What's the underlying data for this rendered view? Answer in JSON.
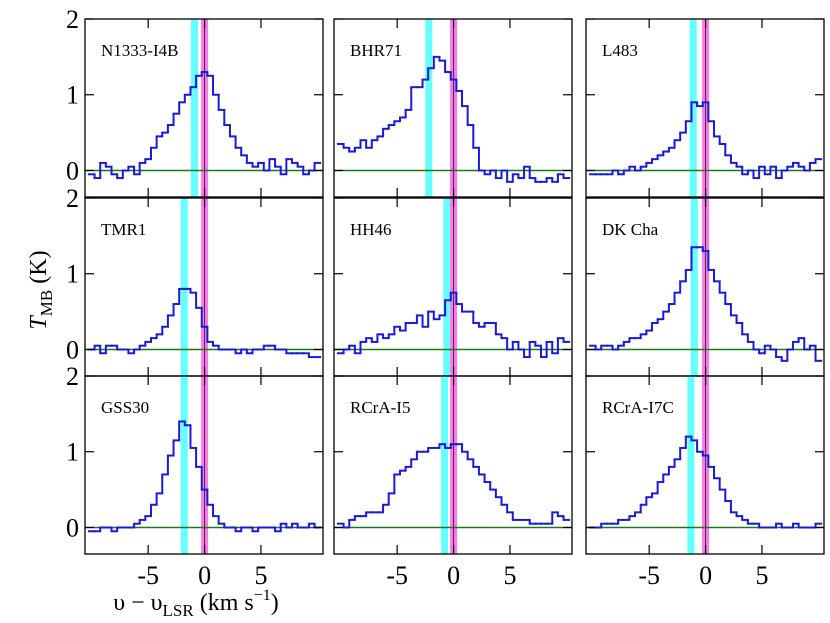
{
  "ylabel": {
    "main": "T",
    "sub": "MB",
    "rest": " (K)"
  },
  "xlabel": {
    "main": "υ − υ",
    "sub": "LSR",
    "rest": " (km s",
    "sup": "−1",
    "end": ")"
  },
  "chart_data": [
    {
      "type": "step",
      "title": "N1333-I4B",
      "color": "#1a1adb",
      "xlim": [
        -10.6,
        10.5
      ],
      "ylim": [
        -0.35,
        2
      ],
      "xticks": [
        -5,
        0,
        5
      ],
      "yticks": [
        0,
        1,
        2
      ],
      "hline": 0,
      "hline_color": "#1a7a1a",
      "bands": [
        {
          "center": -0.9,
          "color": "#66ffff",
          "center_line": false
        },
        {
          "center": 0,
          "color": "#ff77ee",
          "center_line": true
        }
      ],
      "x": [
        -10,
        -9.5,
        -9,
        -8.5,
        -8,
        -7.5,
        -7,
        -6.5,
        -6,
        -5.5,
        -5,
        -4.5,
        -4,
        -3.5,
        -3,
        -2.5,
        -2,
        -1.5,
        -1,
        -0.5,
        0,
        0.5,
        1,
        1.5,
        2,
        2.5,
        3,
        3.5,
        4,
        4.5,
        5,
        5.5,
        6,
        6.5,
        7,
        7.5,
        8,
        8.5,
        9,
        9.5,
        10
      ],
      "values": [
        -0.05,
        -0.1,
        0.1,
        0.05,
        -0.05,
        -0.1,
        0.0,
        0.05,
        -0.05,
        0.1,
        0.15,
        0.3,
        0.45,
        0.5,
        0.6,
        0.75,
        0.9,
        1.0,
        1.1,
        1.25,
        1.3,
        1.25,
        1.0,
        0.8,
        0.6,
        0.45,
        0.3,
        0.2,
        0.1,
        0.05,
        0.1,
        0.0,
        0.15,
        0.05,
        -0.05,
        0.15,
        0.1,
        0.05,
        -0.05,
        0.0,
        0.1
      ]
    },
    {
      "type": "step",
      "title": "BHR71",
      "color": "#1a1adb",
      "xlim": [
        -10.6,
        10.5
      ],
      "ylim": [
        -0.35,
        2
      ],
      "xticks": [
        -5,
        0,
        5
      ],
      "yticks": [
        0,
        1,
        2
      ],
      "hline": 0,
      "hline_color": "#1a7a1a",
      "bands": [
        {
          "center": -2.2,
          "color": "#66ffff",
          "center_line": false
        },
        {
          "center": 0,
          "color": "#ff77ee",
          "center_line": true
        }
      ],
      "x": [
        -10,
        -9.5,
        -9,
        -8.5,
        -8,
        -7.5,
        -7,
        -6.5,
        -6,
        -5.5,
        -5,
        -4.5,
        -4,
        -3.5,
        -3,
        -2.5,
        -2,
        -1.5,
        -1,
        -0.5,
        0,
        0.5,
        1,
        1.5,
        2,
        2.5,
        3,
        3.5,
        4,
        4.5,
        5,
        5.5,
        6,
        6.5,
        7,
        7.5,
        8,
        8.5,
        9,
        9.5,
        10
      ],
      "values": [
        0.35,
        0.3,
        0.25,
        0.3,
        0.4,
        0.3,
        0.4,
        0.45,
        0.55,
        0.6,
        0.65,
        0.7,
        0.8,
        1.1,
        1.1,
        1.2,
        1.35,
        1.5,
        1.45,
        1.3,
        1.2,
        1.05,
        0.85,
        0.6,
        0.3,
        0.0,
        -0.05,
        0.0,
        -0.1,
        0.0,
        -0.15,
        -0.05,
        -0.1,
        0.05,
        -0.1,
        -0.15,
        -0.15,
        -0.1,
        -0.15,
        -0.05,
        -0.1
      ]
    },
    {
      "type": "step",
      "title": "L483",
      "color": "#1a1adb",
      "xlim": [
        -10.6,
        10.5
      ],
      "ylim": [
        -0.35,
        2
      ],
      "xticks": [
        -5,
        0,
        5
      ],
      "yticks": [
        0,
        1,
        2
      ],
      "hline": 0,
      "hline_color": "#1a7a1a",
      "bands": [
        {
          "center": -1.1,
          "color": "#66ffff",
          "center_line": false
        },
        {
          "center": 0,
          "color": "#ff77ee",
          "center_line": true
        }
      ],
      "x": [
        -10,
        -9.5,
        -9,
        -8.5,
        -8,
        -7.5,
        -7,
        -6.5,
        -6,
        -5.5,
        -5,
        -4.5,
        -4,
        -3.5,
        -3,
        -2.5,
        -2,
        -1.5,
        -1,
        -0.5,
        0,
        0.5,
        1,
        1.5,
        2,
        2.5,
        3,
        3.5,
        4,
        4.5,
        5,
        5.5,
        6,
        6.5,
        7,
        7.5,
        8,
        8.5,
        9,
        9.5,
        10
      ],
      "values": [
        -0.05,
        -0.05,
        -0.05,
        -0.05,
        0.0,
        -0.05,
        0.0,
        0.05,
        0.0,
        0.05,
        0.1,
        0.15,
        0.2,
        0.25,
        0.3,
        0.4,
        0.5,
        0.65,
        0.9,
        0.85,
        0.9,
        0.65,
        0.45,
        0.35,
        0.2,
        0.1,
        0.05,
        -0.05,
        0.0,
        -0.1,
        0.05,
        -0.05,
        0.05,
        -0.1,
        0.0,
        0.05,
        0.1,
        0.05,
        0.0,
        0.1,
        0.15
      ]
    },
    {
      "type": "step",
      "title": "TMR1",
      "color": "#1a1adb",
      "xlim": [
        -10.6,
        10.5
      ],
      "ylim": [
        -0.35,
        2
      ],
      "xticks": [
        -5,
        0,
        5
      ],
      "yticks": [
        0,
        1,
        2
      ],
      "hline": 0,
      "hline_color": "#1a7a1a",
      "bands": [
        {
          "center": -1.8,
          "color": "#66ffff",
          "center_line": false
        },
        {
          "center": 0,
          "color": "#ff77ee",
          "center_line": true
        }
      ],
      "x": [
        -10,
        -9.5,
        -9,
        -8.5,
        -8,
        -7.5,
        -7,
        -6.5,
        -6,
        -5.5,
        -5,
        -4.5,
        -4,
        -3.5,
        -3,
        -2.5,
        -2,
        -1.5,
        -1,
        -0.5,
        0,
        0.5,
        1,
        1.5,
        2,
        2.5,
        3,
        3.5,
        4,
        4.5,
        5,
        5.5,
        6,
        6.5,
        7,
        7.5,
        8,
        8.5,
        9,
        9.5,
        10
      ],
      "values": [
        0.0,
        0.05,
        -0.05,
        0.05,
        0.05,
        0.0,
        0.0,
        -0.05,
        0.0,
        0.05,
        0.1,
        0.15,
        0.2,
        0.3,
        0.45,
        0.6,
        0.8,
        0.8,
        0.75,
        0.55,
        0.3,
        0.1,
        0.05,
        0.0,
        0.0,
        0.0,
        -0.05,
        0.0,
        -0.05,
        0.0,
        0.0,
        0.05,
        0.05,
        0.0,
        0.0,
        -0.05,
        -0.05,
        -0.05,
        -0.05,
        -0.1,
        -0.1
      ]
    },
    {
      "type": "step",
      "title": "HH46",
      "color": "#1a1adb",
      "xlim": [
        -10.6,
        10.5
      ],
      "ylim": [
        -0.35,
        2
      ],
      "xticks": [
        -5,
        0,
        5
      ],
      "yticks": [
        0,
        1,
        2
      ],
      "hline": 0,
      "hline_color": "#1a7a1a",
      "bands": [
        {
          "center": -0.6,
          "color": "#66ffff",
          "center_line": false
        },
        {
          "center": 0,
          "color": "#ff77ee",
          "center_line": true
        }
      ],
      "x": [
        -10,
        -9.5,
        -9,
        -8.5,
        -8,
        -7.5,
        -7,
        -6.5,
        -6,
        -5.5,
        -5,
        -4.5,
        -4,
        -3.5,
        -3,
        -2.5,
        -2,
        -1.5,
        -1,
        -0.5,
        0,
        0.5,
        1,
        1.5,
        2,
        2.5,
        3,
        3.5,
        4,
        4.5,
        5,
        5.5,
        6,
        6.5,
        7,
        7.5,
        8,
        8.5,
        9,
        9.5,
        10
      ],
      "values": [
        -0.05,
        0.0,
        0.05,
        -0.05,
        0.1,
        0.15,
        0.1,
        0.2,
        0.15,
        0.2,
        0.3,
        0.25,
        0.35,
        0.35,
        0.45,
        0.3,
        0.5,
        0.4,
        0.45,
        0.65,
        0.75,
        0.6,
        0.5,
        0.5,
        0.35,
        0.3,
        0.35,
        0.35,
        0.2,
        0.15,
        0.0,
        0.1,
        0.0,
        -0.1,
        0.1,
        0.05,
        -0.1,
        0.1,
        -0.05,
        0.15,
        0.1
      ]
    },
    {
      "type": "step",
      "title": "DK Cha",
      "color": "#1a1adb",
      "xlim": [
        -10.6,
        10.5
      ],
      "ylim": [
        -0.35,
        2
      ],
      "xticks": [
        -5,
        0,
        5
      ],
      "yticks": [
        0,
        1,
        2
      ],
      "hline": 0,
      "hline_color": "#1a7a1a",
      "bands": [
        {
          "center": -1.0,
          "color": "#66ffff",
          "center_line": false
        },
        {
          "center": 0,
          "color": "#ff77ee",
          "center_line": true
        }
      ],
      "x": [
        -10,
        -9.5,
        -9,
        -8.5,
        -8,
        -7.5,
        -7,
        -6.5,
        -6,
        -5.5,
        -5,
        -4.5,
        -4,
        -3.5,
        -3,
        -2.5,
        -2,
        -1.5,
        -1,
        -0.5,
        0,
        0.5,
        1,
        1.5,
        2,
        2.5,
        3,
        3.5,
        4,
        4.5,
        5,
        5.5,
        6,
        6.5,
        7,
        7.5,
        8,
        8.5,
        9,
        9.5,
        10
      ],
      "values": [
        0.05,
        0.0,
        0.05,
        0.05,
        0.0,
        0.05,
        0.1,
        0.15,
        0.15,
        0.2,
        0.25,
        0.35,
        0.4,
        0.5,
        0.6,
        0.75,
        0.9,
        1.05,
        1.35,
        1.35,
        1.3,
        1.05,
        0.9,
        0.75,
        0.6,
        0.45,
        0.35,
        0.2,
        0.1,
        0.0,
        -0.05,
        0.05,
        0.0,
        -0.1,
        -0.15,
        0.0,
        0.1,
        0.15,
        0.0,
        0.05,
        -0.15
      ]
    },
    {
      "type": "step",
      "title": "GSS30",
      "color": "#1a1adb",
      "xlim": [
        -10.6,
        10.5
      ],
      "ylim": [
        -0.35,
        2
      ],
      "xticks": [
        -5,
        0,
        5
      ],
      "yticks": [
        0,
        1,
        2
      ],
      "hline": 0,
      "hline_color": "#1a7a1a",
      "bands": [
        {
          "center": -1.8,
          "color": "#66ffff",
          "center_line": false
        },
        {
          "center": 0,
          "color": "#ff77ee",
          "center_line": true
        }
      ],
      "x": [
        -10,
        -9.5,
        -9,
        -8.5,
        -8,
        -7.5,
        -7,
        -6.5,
        -6,
        -5.5,
        -5,
        -4.5,
        -4,
        -3.5,
        -3,
        -2.5,
        -2,
        -1.5,
        -1,
        -0.5,
        0,
        0.5,
        1,
        1.5,
        2,
        2.5,
        3,
        3.5,
        4,
        4.5,
        5,
        5.5,
        6,
        6.5,
        7,
        7.5,
        8,
        8.5,
        9,
        9.5,
        10
      ],
      "values": [
        -0.05,
        -0.05,
        0.0,
        0.0,
        -0.05,
        0.0,
        0.0,
        0.0,
        0.05,
        0.1,
        0.15,
        0.3,
        0.45,
        0.7,
        0.95,
        1.15,
        1.4,
        1.35,
        1.05,
        0.8,
        0.5,
        0.3,
        0.15,
        0.05,
        0.0,
        0.0,
        -0.05,
        0.0,
        0.0,
        -0.05,
        0.0,
        0.0,
        0.0,
        -0.05,
        0.05,
        0.0,
        0.05,
        0.0,
        0.0,
        0.05,
        0.0
      ]
    },
    {
      "type": "step",
      "title": "RCrA-I5",
      "color": "#1a1adb",
      "xlim": [
        -10.6,
        10.5
      ],
      "ylim": [
        -0.35,
        2
      ],
      "xticks": [
        -5,
        0,
        5
      ],
      "yticks": [
        0,
        1,
        2
      ],
      "hline": 0,
      "hline_color": "#1a7a1a",
      "bands": [
        {
          "center": -0.8,
          "color": "#66ffff",
          "center_line": false
        },
        {
          "center": 0,
          "color": "#ff77ee",
          "center_line": true
        }
      ],
      "x": [
        -10,
        -9.5,
        -9,
        -8.5,
        -8,
        -7.5,
        -7,
        -6.5,
        -6,
        -5.5,
        -5,
        -4.5,
        -4,
        -3.5,
        -3,
        -2.5,
        -2,
        -1.5,
        -1,
        -0.5,
        0,
        0.5,
        1,
        1.5,
        2,
        2.5,
        3,
        3.5,
        4,
        4.5,
        5,
        5.5,
        6,
        6.5,
        7,
        7.5,
        8,
        8.5,
        9,
        9.5,
        10
      ],
      "values": [
        0.05,
        0.0,
        0.1,
        0.15,
        0.15,
        0.2,
        0.2,
        0.2,
        0.3,
        0.45,
        0.7,
        0.75,
        0.8,
        0.9,
        1.0,
        1.0,
        1.05,
        1.05,
        1.1,
        1.05,
        1.1,
        1.1,
        1.0,
        0.9,
        0.8,
        0.7,
        0.6,
        0.5,
        0.4,
        0.3,
        0.2,
        0.1,
        0.1,
        0.1,
        0.05,
        0.05,
        0.05,
        0.05,
        0.2,
        0.15,
        0.1
      ]
    },
    {
      "type": "step",
      "title": "RCrA-I7C",
      "color": "#1a1adb",
      "xlim": [
        -10.6,
        10.5
      ],
      "ylim": [
        -0.35,
        2
      ],
      "xticks": [
        -5,
        0,
        5
      ],
      "yticks": [
        0,
        1,
        2
      ],
      "hline": 0,
      "hline_color": "#1a7a1a",
      "bands": [
        {
          "center": -1.3,
          "color": "#66ffff",
          "center_line": false
        },
        {
          "center": 0,
          "color": "#ff77ee",
          "center_line": true
        }
      ],
      "x": [
        -10,
        -9.5,
        -9,
        -8.5,
        -8,
        -7.5,
        -7,
        -6.5,
        -6,
        -5.5,
        -5,
        -4.5,
        -4,
        -3.5,
        -3,
        -2.5,
        -2,
        -1.5,
        -1,
        -0.5,
        0,
        0.5,
        1,
        1.5,
        2,
        2.5,
        3,
        3.5,
        4,
        4.5,
        5,
        5.5,
        6,
        6.5,
        7,
        7.5,
        8,
        8.5,
        9,
        9.5,
        10
      ],
      "values": [
        0.0,
        0.0,
        0.05,
        0.05,
        0.05,
        0.1,
        0.1,
        0.15,
        0.2,
        0.3,
        0.4,
        0.45,
        0.6,
        0.7,
        0.8,
        0.9,
        1.05,
        1.2,
        1.15,
        1.0,
        0.95,
        0.8,
        0.65,
        0.5,
        0.35,
        0.2,
        0.15,
        0.1,
        0.05,
        0.05,
        0.0,
        0.0,
        0.0,
        0.05,
        0.0,
        0.0,
        0.05,
        0.0,
        0.0,
        0.0,
        0.05
      ]
    }
  ]
}
